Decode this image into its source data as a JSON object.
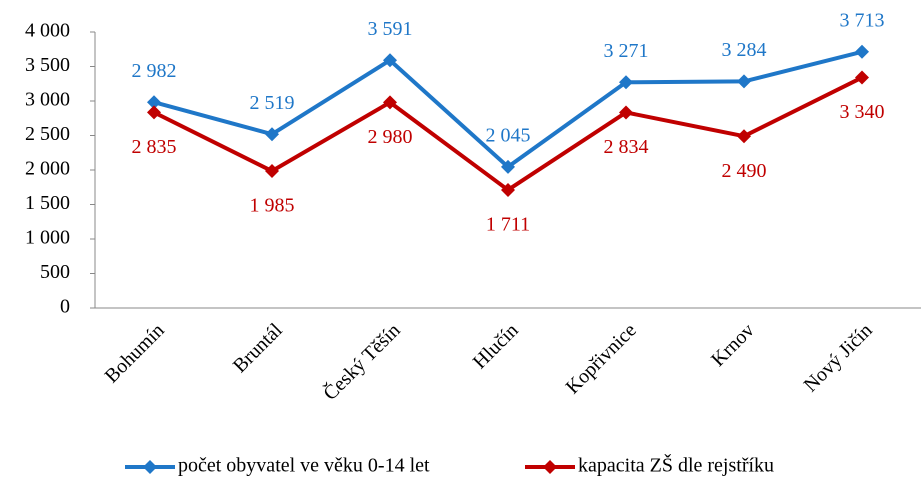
{
  "chart_data": {
    "type": "line",
    "categories": [
      "Bohumín",
      "Bruntál",
      "Český Těšín",
      "Hlučín",
      "Kopřivnice",
      "Krnov",
      "Nový Jičín"
    ],
    "series": [
      {
        "name": "počet obyvatel ve věku 0-14 let",
        "color": "#1f77c8",
        "values": [
          2982,
          2519,
          3591,
          2045,
          3271,
          3284,
          3713
        ],
        "value_labels": [
          "2 982",
          "2 519",
          "3 591",
          "2 045",
          "3 271",
          "3 284",
          "3 713"
        ]
      },
      {
        "name": "kapacita ZŠ dle rejstříku",
        "color": "#c00000",
        "values": [
          2835,
          1985,
          2980,
          1711,
          2834,
          2490,
          3340
        ],
        "value_labels": [
          "2 835",
          "1 985",
          "2 980",
          "1 711",
          "2 834",
          "2 490",
          "3 340"
        ]
      }
    ],
    "ylim": [
      0,
      4000
    ],
    "yticks": [
      0,
      500,
      {
        "value": 1000,
        "label": "1 000"
      },
      {
        "value": 1500,
        "label": "1 500"
      },
      {
        "value": 2000,
        "label": "2 000"
      },
      {
        "value": 2500,
        "label": "2 500"
      },
      {
        "value": 3000,
        "label": "3 000"
      },
      {
        "value": 3500,
        "label": "3 500"
      },
      {
        "value": 4000,
        "label": "4 000"
      }
    ],
    "grid": false,
    "legend": "bottom"
  }
}
